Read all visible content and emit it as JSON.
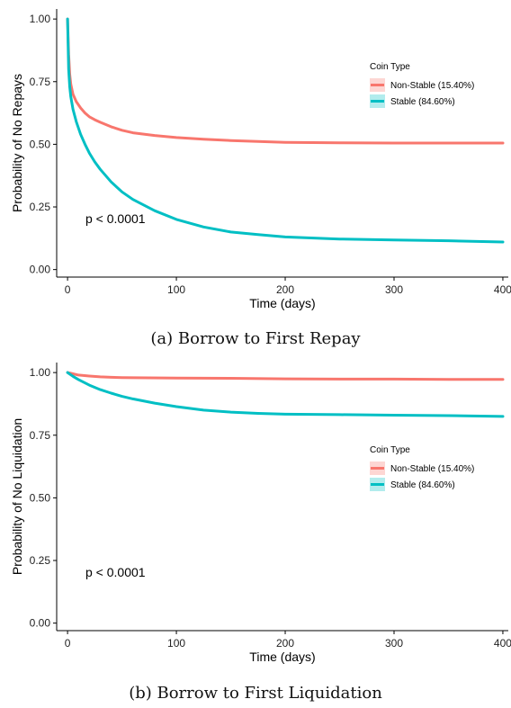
{
  "chart_data": [
    {
      "type": "line",
      "caption": "(a) Borrow to First Repay",
      "xlabel": "Time (days)",
      "ylabel": "Probability of No Repays",
      "xlim": [
        -10,
        405
      ],
      "ylim": [
        -0.03,
        1.04
      ],
      "xticks": [
        0,
        100,
        200,
        300,
        400
      ],
      "yticks": [
        "0.00",
        "0.25",
        "0.50",
        "0.75",
        "1.00"
      ],
      "grid": false,
      "annotation": "p < 0.0001",
      "legend": {
        "title": "Coin Type",
        "placement": "right"
      },
      "series": [
        {
          "name": "Non-Stable (15.40%)",
          "color": "#F8766D",
          "x": [
            0,
            1,
            2,
            3,
            5,
            8,
            12,
            16,
            20,
            25,
            30,
            40,
            50,
            60,
            80,
            100,
            125,
            150,
            175,
            200,
            250,
            300,
            350,
            400
          ],
          "y": [
            1.0,
            0.86,
            0.78,
            0.74,
            0.7,
            0.67,
            0.645,
            0.625,
            0.61,
            0.598,
            0.588,
            0.57,
            0.556,
            0.546,
            0.535,
            0.527,
            0.52,
            0.515,
            0.511,
            0.508,
            0.506,
            0.505,
            0.505,
            0.505
          ]
        },
        {
          "name": "Stable (84.60%)",
          "color": "#00BFC4",
          "x": [
            0,
            1,
            2,
            3,
            5,
            8,
            12,
            16,
            20,
            25,
            30,
            40,
            50,
            60,
            80,
            100,
            125,
            150,
            175,
            200,
            250,
            300,
            350,
            400
          ],
          "y": [
            1.0,
            0.8,
            0.73,
            0.69,
            0.64,
            0.59,
            0.54,
            0.5,
            0.465,
            0.43,
            0.4,
            0.35,
            0.31,
            0.28,
            0.235,
            0.2,
            0.17,
            0.15,
            0.14,
            0.13,
            0.122,
            0.118,
            0.115,
            0.11
          ]
        }
      ]
    },
    {
      "type": "line",
      "caption": "(b) Borrow to First Liquidation",
      "xlabel": "Time (days)",
      "ylabel": "Probability of No Liquidation",
      "xlim": [
        -10,
        405
      ],
      "ylim": [
        -0.03,
        1.04
      ],
      "xticks": [
        0,
        100,
        200,
        300,
        400
      ],
      "yticks": [
        "0.00",
        "0.25",
        "0.50",
        "0.75",
        "1.00"
      ],
      "grid": false,
      "annotation": "p < 0.0001",
      "legend": {
        "title": "Coin Type",
        "placement": "right"
      },
      "series": [
        {
          "name": "Non-Stable (15.40%)",
          "color": "#F8766D",
          "x": [
            0,
            5,
            10,
            20,
            30,
            40,
            50,
            75,
            100,
            150,
            200,
            250,
            300,
            350,
            400
          ],
          "y": [
            1.0,
            0.995,
            0.99,
            0.986,
            0.983,
            0.981,
            0.98,
            0.979,
            0.978,
            0.977,
            0.975,
            0.974,
            0.974,
            0.973,
            0.973
          ]
        },
        {
          "name": "Stable (84.60%)",
          "color": "#00BFC4",
          "x": [
            0,
            5,
            10,
            20,
            30,
            40,
            50,
            60,
            80,
            100,
            125,
            150,
            175,
            200,
            250,
            300,
            350,
            400
          ],
          "y": [
            1.0,
            0.985,
            0.972,
            0.95,
            0.932,
            0.918,
            0.905,
            0.895,
            0.878,
            0.864,
            0.85,
            0.842,
            0.837,
            0.834,
            0.832,
            0.83,
            0.828,
            0.825
          ]
        }
      ]
    }
  ]
}
